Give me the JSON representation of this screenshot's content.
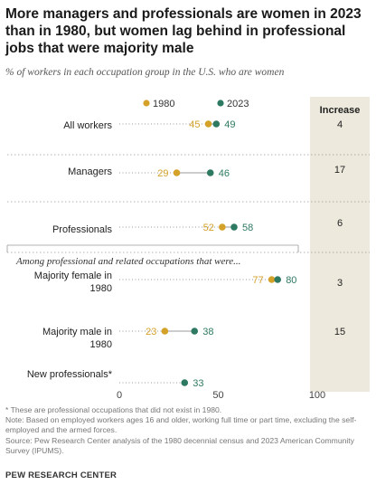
{
  "header": {
    "title": "More managers and professionals are women in 2023 than in 1980, but women lag behind in professional jobs that were majority male",
    "subtitle": "% of workers in each occupation group in the U.S. who are women"
  },
  "colors": {
    "y1980": "#D4A129",
    "y2023": "#2E7962",
    "increase_bg": "#EDE9DC",
    "dotted": "#9a9a9a"
  },
  "chart_data": {
    "type": "dot",
    "series": [
      {
        "name": "1980",
        "values": [
          45,
          29,
          52,
          77,
          23,
          null
        ]
      },
      {
        "name": "2023",
        "values": [
          49,
          46,
          58,
          80,
          38,
          33
        ]
      }
    ],
    "categories": [
      "All workers",
      "Managers",
      "Professionals",
      "Majority female in 1980",
      "Majority male in 1980",
      "New professionals*"
    ],
    "increase_header": "Increase",
    "increase": [
      "4",
      "17",
      "6",
      "3",
      "15",
      ""
    ],
    "group_note": "Among professional and related occupations that were...",
    "xlim": [
      0,
      100
    ],
    "xticks": [
      0,
      50,
      100
    ],
    "legend_position": "top"
  },
  "notes": {
    "note1": "* These are professional occupations that did not exist in 1980.",
    "note2": "Note: Based on employed workers ages 16 and older, working full time or part time, excluding the self-employed and the armed forces.",
    "note3": "Source: Pew Research Center analysis of the 1980 decennial census and 2023 American Community Survey (IPUMS)."
  },
  "source_label": "PEW RESEARCH CENTER"
}
